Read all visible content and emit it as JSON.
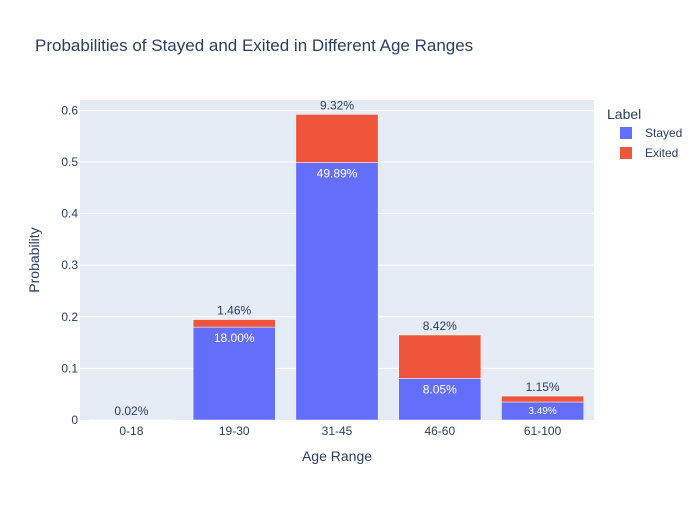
{
  "chart_data": {
    "type": "bar",
    "barmode": "stack",
    "title": "Probabilities of Stayed and Exited in Different Age Ranges",
    "xlabel": "Age Range",
    "ylabel": "Probability",
    "categories": [
      "0-18",
      "19-30",
      "31-45",
      "46-60",
      "61-100"
    ],
    "ylim": [
      0,
      0.62
    ],
    "yticks": [
      0,
      0.1,
      0.2,
      0.3,
      0.4,
      0.5,
      0.6
    ],
    "ytick_labels": [
      "0",
      "0.1",
      "0.2",
      "0.3",
      "0.4",
      "0.5",
      "0.6"
    ],
    "grid": true,
    "legend": {
      "title": "Label",
      "position": "right"
    },
    "series": [
      {
        "name": "Stayed",
        "color": "#636efa",
        "values": [
          0.0002,
          0.18,
          0.4989,
          0.0805,
          0.0349
        ],
        "labels": [
          "",
          "18.00%",
          "49.89%",
          "8.05%",
          "3.49%"
        ]
      },
      {
        "name": "Exited",
        "color": "#ef553b",
        "values": [
          0.0002,
          0.0146,
          0.0932,
          0.0842,
          0.0115
        ],
        "labels": [
          "0.02%",
          "1.46%",
          "9.32%",
          "8.42%",
          "1.15%"
        ]
      }
    ]
  }
}
